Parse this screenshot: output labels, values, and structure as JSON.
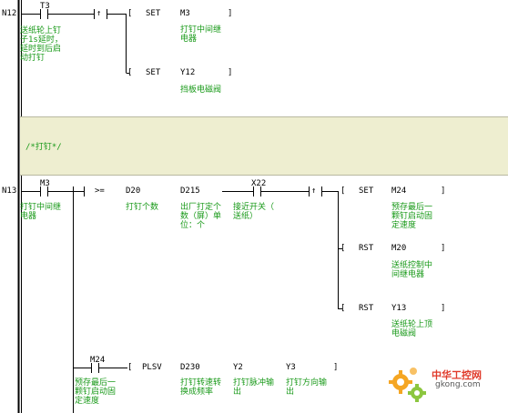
{
  "rungs": [
    {
      "number": "N12",
      "contact": {
        "label": "T3",
        "comment": "送纸轮上钉\n子1s延时，\n延时到后启\n动打钉"
      },
      "edge_symbol": "↑",
      "instructions": [
        {
          "op": "SET",
          "operand": "M3",
          "comment": "打钉中间继\n电器"
        },
        {
          "op": "SET",
          "operand": "Y12",
          "comment": "挡板电磁阀"
        }
      ]
    },
    {
      "number": "N13",
      "contact": {
        "label": "M3",
        "comment": "打钉中间继\n电器"
      },
      "compare": {
        "op": ">=",
        "op1": "D20",
        "op1_comment": "打钉个数",
        "op2": "D215",
        "op2_comment": "出厂打定个\n数（屏）单\n位：个"
      },
      "contact2": {
        "label": "X22",
        "comment": "接近开关（\n送纸）"
      },
      "edge_symbol": "↑",
      "instructions": [
        {
          "op": "SET",
          "operand": "M24",
          "comment": "预存最后一\n颗钉启动固\n定速度"
        },
        {
          "op": "RST",
          "operand": "M20",
          "comment": "送纸控制中\n间继电器"
        },
        {
          "op": "RST",
          "operand": "Y13",
          "comment": "送纸轮上顶\n电磁阀"
        }
      ],
      "branch": {
        "contact": {
          "label": "M24",
          "comment": "预存最后一\n颗钉启动固\n定速度"
        },
        "instruction": {
          "op": "PLSV",
          "op1": "D230",
          "op1_comment": "打钉转速转\n换成频率",
          "op2": "Y2",
          "op2_comment": "打钉脉冲输\n出",
          "op3": "Y3",
          "op3_comment": "打钉方向输\n出"
        }
      }
    }
  ],
  "comment_block": {
    "text": "/*打钉*/"
  },
  "watermark": {
    "text": "中华工控网",
    "url": "gkong.com",
    "color": "#e03a2a"
  },
  "colors": {
    "line": "#000000",
    "comment": "#1a9a1a",
    "band": "#eeeed0"
  }
}
